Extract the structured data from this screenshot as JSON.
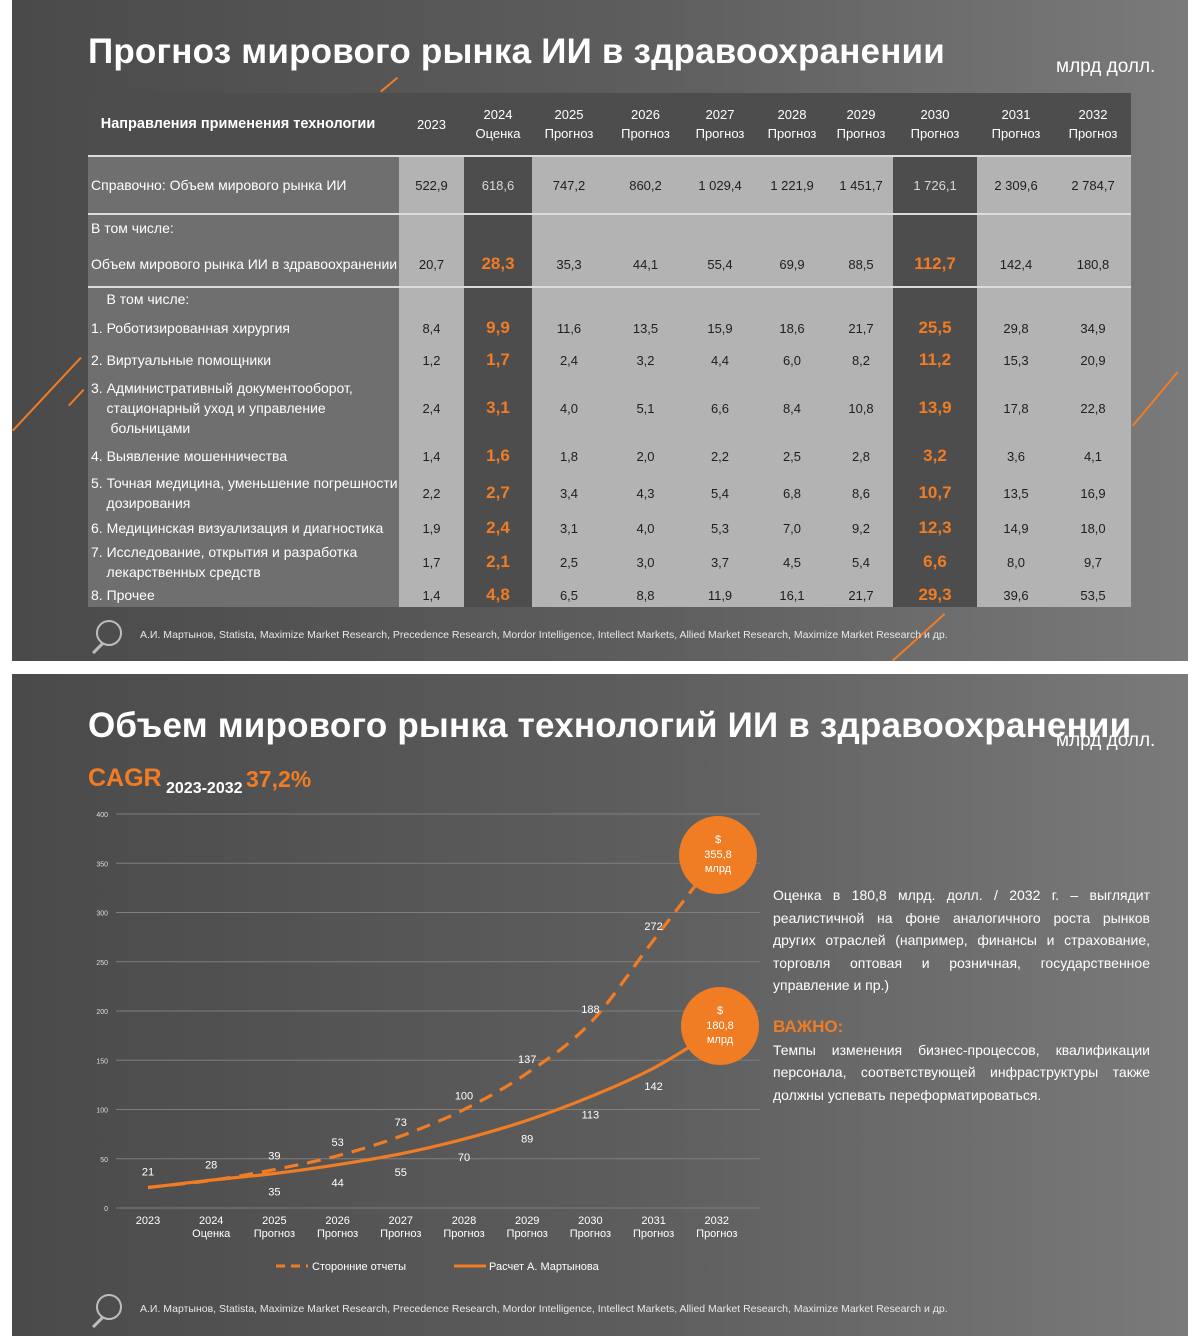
{
  "slide1": {
    "title": "Прогноз мирового рынка ИИ в здравоохранении",
    "unit": "млрд долл.",
    "table": {
      "header_label": "Направления применения технологии",
      "years": [
        {
          "y": "2023",
          "s": ""
        },
        {
          "y": "2024",
          "s": "Оценка"
        },
        {
          "y": "2025",
          "s": "Прогноз"
        },
        {
          "y": "2026",
          "s": "Прогноз"
        },
        {
          "y": "2027",
          "s": "Прогноз"
        },
        {
          "y": "2028",
          "s": "Прогноз"
        },
        {
          "y": "2029",
          "s": "Прогноз"
        },
        {
          "y": "2030",
          "s": "Прогноз"
        },
        {
          "y": "2031",
          "s": "Прогноз"
        },
        {
          "y": "2032",
          "s": "Прогноз"
        }
      ],
      "rows": [
        {
          "label": [
            "Справочно: Объем мирового рынка ИИ"
          ],
          "values": [
            "522,9",
            "618,6",
            "747,2",
            "860,2",
            "1 029,4",
            "1 221,9",
            "1 451,7",
            "1 726,1",
            "2 309,6",
            "2 784,7"
          ]
        },
        {
          "label": [
            "В том числе:"
          ],
          "values": []
        },
        {
          "label": [
            "Объем мирового рынка ИИ в здравоохранении"
          ],
          "values": [
            "20,7",
            "28,3",
            "35,3",
            "44,1",
            "55,4",
            "69,9",
            "88,5",
            "112,7",
            "142,4",
            "180,8"
          ]
        },
        {
          "label": [
            "    В том числе:"
          ],
          "values": []
        },
        {
          "label": [
            "1. Роботизированная хирургия"
          ],
          "values": [
            "8,4",
            "9,9",
            "11,6",
            "13,5",
            "15,9",
            "18,6",
            "21,7",
            "25,5",
            "29,8",
            "34,9"
          ]
        },
        {
          "label": [
            "2. Виртуальные помощники"
          ],
          "values": [
            "1,2",
            "1,7",
            "2,4",
            "3,2",
            "4,4",
            "6,0",
            "8,2",
            "11,2",
            "15,3",
            "20,9"
          ]
        },
        {
          "label": [
            "3. Административный документооборот,",
            "    стационарный уход и управление",
            "     больницами"
          ],
          "values": [
            "2,4",
            "3,1",
            "4,0",
            "5,1",
            "6,6",
            "8,4",
            "10,8",
            "13,9",
            "17,8",
            "22,8"
          ]
        },
        {
          "label": [
            "4. Выявление мошенничества"
          ],
          "values": [
            "1,4",
            "1,6",
            "1,8",
            "2,0",
            "2,2",
            "2,5",
            "2,8",
            "3,2",
            "3,6",
            "4,1"
          ]
        },
        {
          "label": [
            "5. Точная медицина, уменьшение погрешности",
            "    дозирования"
          ],
          "values": [
            "2,2",
            "2,7",
            "3,4",
            "4,3",
            "5,4",
            "6,8",
            "8,6",
            "10,7",
            "13,5",
            "16,9"
          ]
        },
        {
          "label": [
            "6. Медицинская визуализация и диагностика"
          ],
          "values": [
            "1,9",
            "2,4",
            "3,1",
            "4,0",
            "5,3",
            "7,0",
            "9,2",
            "12,3",
            "14,9",
            "18,0"
          ]
        },
        {
          "label": [
            "7. Исследование, открытия и разработка",
            "    лекарственных средств"
          ],
          "values": [
            "1,7",
            "2,1",
            "2,5",
            "3,0",
            "3,7",
            "4,5",
            "5,4",
            "6,6",
            "8,0",
            "9,7"
          ]
        },
        {
          "label": [
            "8. Прочее"
          ],
          "values": [
            "1,4",
            "4,8",
            "6,5",
            "8,8",
            "11,9",
            "16,1",
            "21,7",
            "29,3",
            "39,6",
            "53,5"
          ]
        }
      ]
    },
    "source": "А.И. Мартынов, Statista, Maximize Market Research, Precedence Research, Mordor Intelligence, Intellect Markets, Allied Market Research, Maximize Market Research и др."
  },
  "slide2": {
    "title": "Объем мирового рынка технологий ИИ в здравоохранении",
    "unit": "млрд долл.",
    "cagr_label": "CAGR",
    "cagr_period": "2023-2032",
    "cagr_value": "37,2%",
    "bubble_top": {
      "currency": "$",
      "value": "355,8",
      "unit": "млрд"
    },
    "bubble_bottom": {
      "currency": "$",
      "value": "180,8",
      "unit": "млрд"
    },
    "text_main": "Оценка в 180,8 млрд. долл. / 2032 г. – выглядит реалистичной на фоне аналогичного роста рынков других отраслей (например, финансы и страхование, торговля оптовая и розничная, государственное управление и пр.)",
    "text_head": "ВАЖНО:",
    "text_body": "Темпы изменения бизнес-процессов, квалификации персонала, соответствующей инфраструктуры также должны успевать переформатироваться.",
    "source": "А.И. Мартынов, Statista, Maximize Market Research, Precedence Research, Mordor Intelligence, Intellect Markets, Allied Market Research, Maximize Market Research и др."
  },
  "chart_data": {
    "type": "line",
    "categories": [
      "2023",
      "2024",
      "2025",
      "2026",
      "2027",
      "2028",
      "2029",
      "2030",
      "2031",
      "2032"
    ],
    "category_sub": [
      "",
      "Оценка",
      "Прогноз",
      "Прогноз",
      "Прогноз",
      "Прогноз",
      "Прогноз",
      "Прогноз",
      "Прогноз",
      "Прогноз"
    ],
    "ylim": [
      0,
      400
    ],
    "yticks": [
      0,
      50,
      100,
      150,
      200,
      250,
      300,
      350,
      400
    ],
    "grid": true,
    "legend_placement": "bottom",
    "series": [
      {
        "name": "Сторонние отчеты",
        "style": "dashed",
        "color": "#f07c24",
        "values": [
          21,
          28,
          39,
          53,
          73,
          100,
          137,
          188,
          272,
          355.8
        ],
        "labels": [
          "21",
          "28",
          "39",
          "53",
          "73",
          "100",
          "137",
          "188",
          "272",
          ""
        ]
      },
      {
        "name": "Расчет А. Мартынова",
        "style": "solid",
        "color": "#f07c24",
        "values": [
          20.7,
          28.3,
          35,
          44,
          55,
          70,
          89,
          113,
          142,
          180.8
        ],
        "labels": [
          "",
          "",
          "35",
          "44",
          "55",
          "70",
          "89",
          "113",
          "142",
          ""
        ]
      }
    ]
  }
}
